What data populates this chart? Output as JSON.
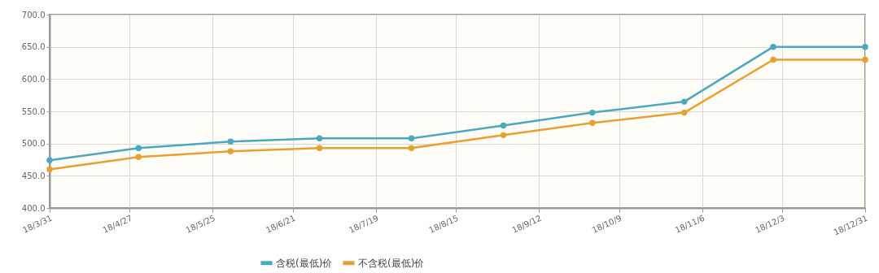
{
  "chart_data": {
    "type": "line",
    "x": [
      "--03-31",
      "--04-30",
      "--05-31",
      "--06-30",
      "--07-31",
      "--08-31",
      "--09-30",
      "--10-31",
      "--11-30",
      "--12-31"
    ],
    "series": [
      {
        "name": "含税(最低)价",
        "color": "#4aa8bf",
        "values": [
          474,
          493,
          503,
          508,
          508,
          528,
          548,
          565,
          650,
          650
        ]
      },
      {
        "name": "不含税(最低)价",
        "color": "#e8a030",
        "values": [
          460,
          479,
          488,
          493,
          493,
          513,
          532,
          548,
          630,
          630
        ]
      }
    ],
    "xlim": [
      "--03-31",
      "--12-31"
    ],
    "xticks": [
      {
        "value": "--03-31",
        "label": "18/3/31"
      },
      {
        "value": "--04-27",
        "label": "18/4/27"
      },
      {
        "value": "--05-25",
        "label": "18/5/25"
      },
      {
        "value": "--06-21",
        "label": "18/6/21"
      },
      {
        "value": "--07-19",
        "label": "18/7/19"
      },
      {
        "value": "--08-15",
        "label": "18/8/15"
      },
      {
        "value": "--09-12",
        "label": "18/9/12"
      },
      {
        "value": "--10-09",
        "label": "18/10/9"
      },
      {
        "value": "--11-06",
        "label": "18/11/6"
      },
      {
        "value": "--12-03",
        "label": "18/12/3"
      },
      {
        "value": "--12-31",
        "label": "18/12/31"
      }
    ],
    "ylim": [
      400,
      700
    ],
    "yticks": [
      {
        "value": 400,
        "label": "400.0"
      },
      {
        "value": 450,
        "label": "450.0"
      },
      {
        "value": 500,
        "label": "500.0"
      },
      {
        "value": 550,
        "label": "550.0"
      },
      {
        "value": 600,
        "label": "600.0"
      },
      {
        "value": 650,
        "label": "650.0"
      },
      {
        "value": 700,
        "label": "700.0"
      }
    ],
    "grid": true,
    "legend": "bottom",
    "marker": "circle",
    "line_style": "solid"
  }
}
